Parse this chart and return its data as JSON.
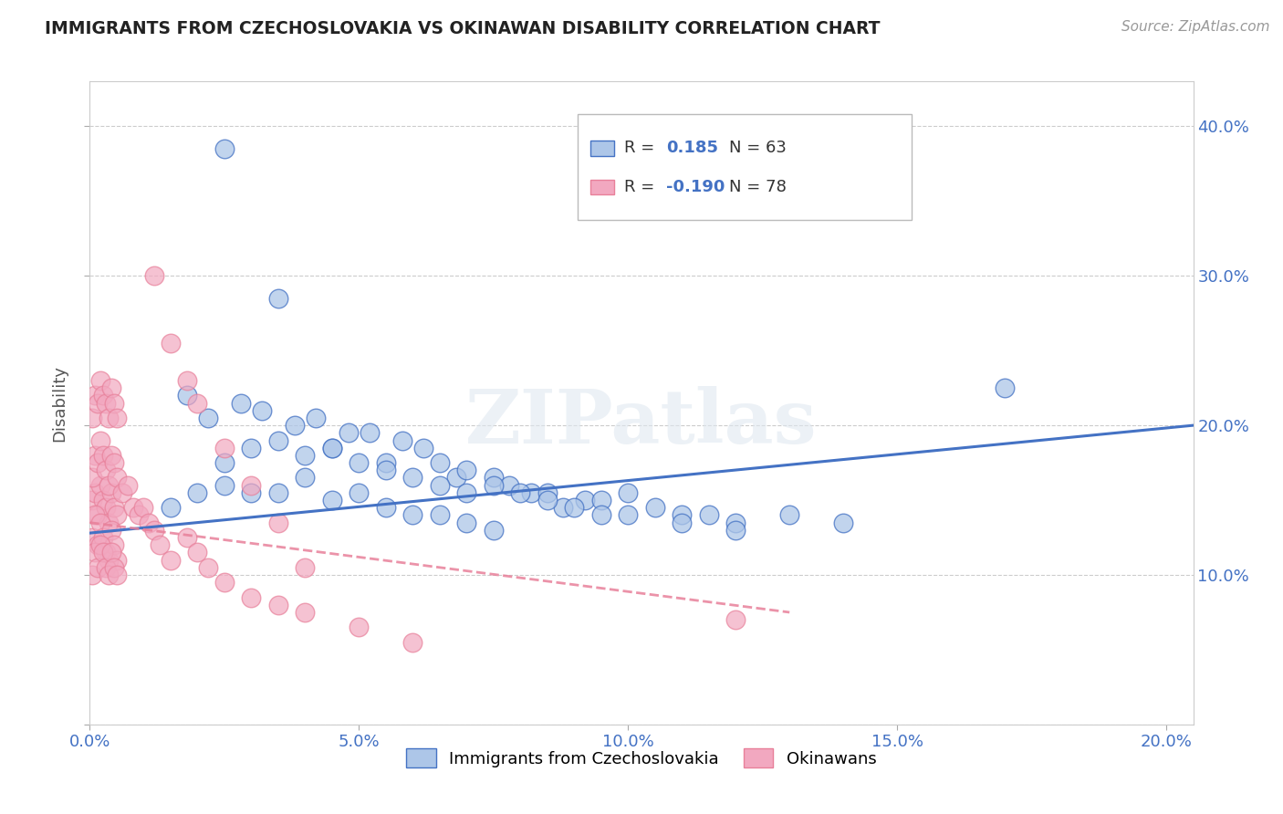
{
  "title": "IMMIGRANTS FROM CZECHOSLOVAKIA VS OKINAWAN DISABILITY CORRELATION CHART",
  "source": "Source: ZipAtlas.com",
  "watermark": "ZIPatlas",
  "xlim": [
    0.0,
    0.205
  ],
  "ylim": [
    0.0,
    0.43
  ],
  "x_tick_vals": [
    0.0,
    0.05,
    0.1,
    0.15,
    0.2
  ],
  "y_tick_vals": [
    0.0,
    0.1,
    0.2,
    0.3,
    0.4
  ],
  "xlabel_ticks": [
    "0.0%",
    "5.0%",
    "10.0%",
    "15.0%",
    "20.0%"
  ],
  "ylabel_ticks": [
    "0.0%",
    "10.0%",
    "20.0%",
    "30.0%",
    "40.0%"
  ],
  "right_ytick_labels": [
    "10.0%",
    "20.0%",
    "30.0%",
    "40.0%"
  ],
  "right_ytick_vals": [
    0.1,
    0.2,
    0.3,
    0.4
  ],
  "color_blue": "#adc6e8",
  "color_pink": "#f2a8c0",
  "color_line_blue": "#4472c4",
  "color_line_pink": "#e8809a",
  "ylabel": "Disability",
  "legend_label1": "Immigrants from Czechoslovakia",
  "legend_label2": "Okinawans",
  "grid_color": "#cccccc",
  "title_color": "#222222",
  "axis_label_color": "#4472c4",
  "blue_trend_x": [
    0.0,
    0.205
  ],
  "blue_trend_y": [
    0.128,
    0.2
  ],
  "pink_trend_x": [
    0.0,
    0.13
  ],
  "pink_trend_y": [
    0.135,
    0.075
  ],
  "blue_scatter_x": [
    0.025,
    0.035,
    0.018,
    0.028,
    0.022,
    0.032,
    0.038,
    0.042,
    0.048,
    0.052,
    0.045,
    0.055,
    0.058,
    0.062,
    0.065,
    0.068,
    0.07,
    0.075,
    0.078,
    0.082,
    0.085,
    0.088,
    0.092,
    0.095,
    0.1,
    0.105,
    0.11,
    0.115,
    0.12,
    0.13,
    0.14,
    0.17,
    0.025,
    0.03,
    0.035,
    0.04,
    0.045,
    0.05,
    0.055,
    0.06,
    0.065,
    0.07,
    0.075,
    0.08,
    0.085,
    0.09,
    0.095,
    0.1,
    0.11,
    0.12,
    0.015,
    0.02,
    0.025,
    0.03,
    0.035,
    0.04,
    0.045,
    0.05,
    0.055,
    0.06,
    0.065,
    0.07,
    0.075
  ],
  "blue_scatter_y": [
    0.385,
    0.285,
    0.22,
    0.215,
    0.205,
    0.21,
    0.2,
    0.205,
    0.195,
    0.195,
    0.185,
    0.175,
    0.19,
    0.185,
    0.175,
    0.165,
    0.17,
    0.165,
    0.16,
    0.155,
    0.155,
    0.145,
    0.15,
    0.15,
    0.155,
    0.145,
    0.14,
    0.14,
    0.135,
    0.14,
    0.135,
    0.225,
    0.175,
    0.185,
    0.19,
    0.18,
    0.185,
    0.175,
    0.17,
    0.165,
    0.16,
    0.155,
    0.16,
    0.155,
    0.15,
    0.145,
    0.14,
    0.14,
    0.135,
    0.13,
    0.145,
    0.155,
    0.16,
    0.155,
    0.155,
    0.165,
    0.15,
    0.155,
    0.145,
    0.14,
    0.14,
    0.135,
    0.13
  ],
  "pink_scatter_x": [
    0.0005,
    0.001,
    0.0015,
    0.002,
    0.0025,
    0.003,
    0.0035,
    0.004,
    0.0045,
    0.005,
    0.0005,
    0.001,
    0.0015,
    0.002,
    0.0025,
    0.003,
    0.0035,
    0.004,
    0.0045,
    0.005,
    0.0005,
    0.001,
    0.0015,
    0.002,
    0.0025,
    0.003,
    0.0035,
    0.004,
    0.0045,
    0.005,
    0.0005,
    0.001,
    0.0015,
    0.002,
    0.0025,
    0.003,
    0.0035,
    0.004,
    0.0045,
    0.005,
    0.0005,
    0.001,
    0.0015,
    0.002,
    0.0025,
    0.003,
    0.0035,
    0.004,
    0.0045,
    0.005,
    0.006,
    0.007,
    0.008,
    0.009,
    0.01,
    0.011,
    0.012,
    0.013,
    0.015,
    0.018,
    0.02,
    0.022,
    0.025,
    0.03,
    0.035,
    0.04,
    0.05,
    0.06,
    0.012,
    0.015,
    0.018,
    0.02,
    0.025,
    0.03,
    0.035,
    0.04,
    0.12
  ],
  "pink_scatter_y": [
    0.15,
    0.155,
    0.14,
    0.16,
    0.15,
    0.145,
    0.135,
    0.155,
    0.145,
    0.14,
    0.125,
    0.14,
    0.12,
    0.135,
    0.125,
    0.115,
    0.11,
    0.13,
    0.12,
    0.11,
    0.165,
    0.18,
    0.175,
    0.19,
    0.18,
    0.17,
    0.16,
    0.18,
    0.175,
    0.165,
    0.205,
    0.22,
    0.215,
    0.23,
    0.22,
    0.215,
    0.205,
    0.225,
    0.215,
    0.205,
    0.1,
    0.115,
    0.105,
    0.12,
    0.115,
    0.105,
    0.1,
    0.115,
    0.105,
    0.1,
    0.155,
    0.16,
    0.145,
    0.14,
    0.145,
    0.135,
    0.13,
    0.12,
    0.11,
    0.125,
    0.115,
    0.105,
    0.095,
    0.085,
    0.08,
    0.075,
    0.065,
    0.055,
    0.3,
    0.255,
    0.23,
    0.215,
    0.185,
    0.16,
    0.135,
    0.105,
    0.07
  ]
}
